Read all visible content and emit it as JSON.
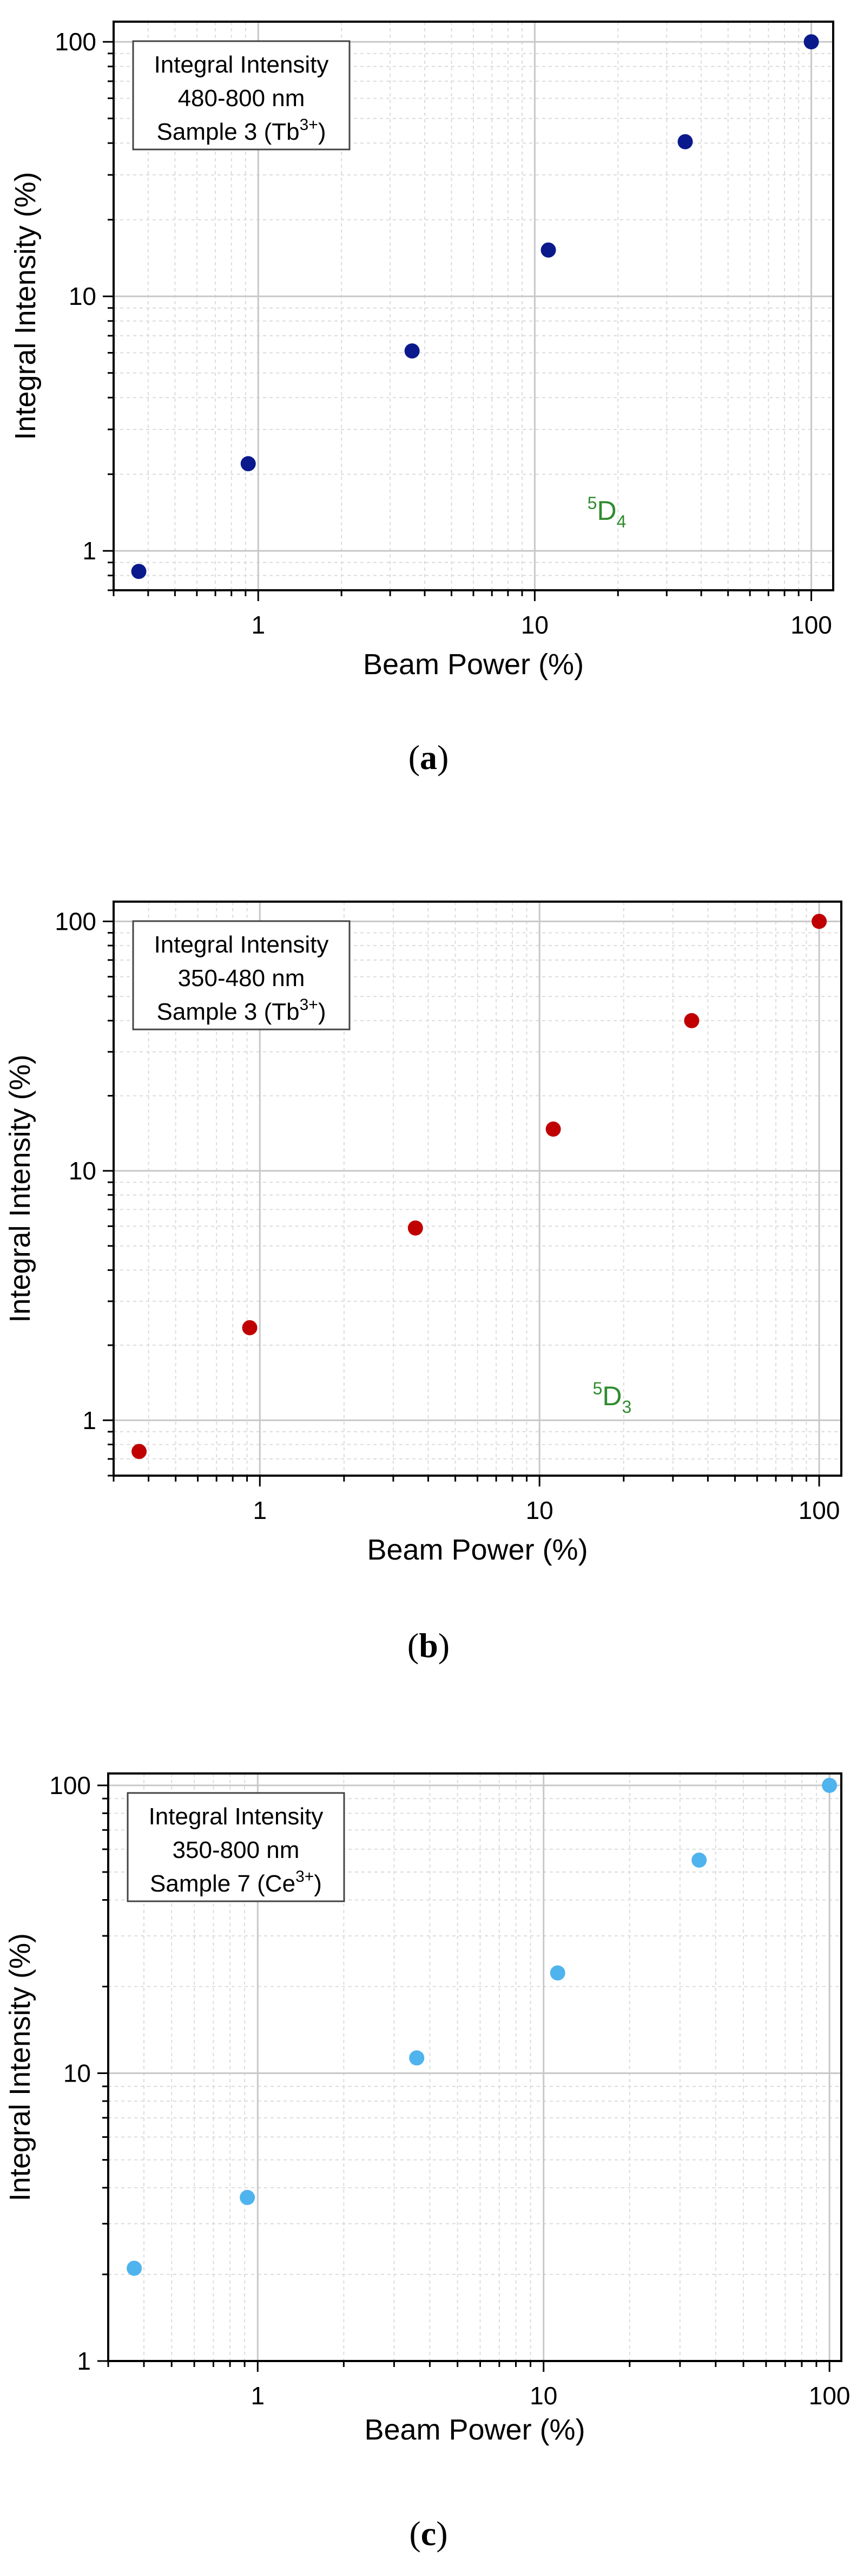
{
  "panels": [
    {
      "caption_letter": "a",
      "legend_lines": [
        "Integral Intensity",
        "480-800 nm"
      ],
      "legend_sample": "Sample 3 (Tb",
      "legend_ion_sup": "3+",
      "legend_suffix": ")",
      "level_sup": "5",
      "level_main": "D",
      "level_sub": "4",
      "level_color": "#2e8b2e",
      "marker_color": "#0a1a8c",
      "chart_data": {
        "type": "scatter",
        "xlabel": "Beam Power (%)",
        "ylabel": "Integral Intensity (%)",
        "xscale": "log",
        "yscale": "log",
        "xlim": [
          0.3,
          120
        ],
        "ylim": [
          0.7,
          120
        ],
        "xticks": [
          1,
          10,
          100
        ],
        "yticks": [
          1,
          10,
          100
        ],
        "grid": true,
        "legend_position": "top-left",
        "x": [
          0.37,
          0.92,
          3.6,
          11.2,
          35,
          100
        ],
        "y": [
          0.83,
          2.2,
          6.1,
          15.2,
          40.5,
          100
        ]
      }
    },
    {
      "caption_letter": "b",
      "legend_lines": [
        "Integral Intensity",
        "350-480 nm"
      ],
      "legend_sample": "Sample 3 (Tb",
      "legend_ion_sup": "3+",
      "legend_suffix": ")",
      "level_sup": "5",
      "level_main": "D",
      "level_sub": "3",
      "level_color": "#2e8b2e",
      "marker_color": "#c00000",
      "chart_data": {
        "type": "scatter",
        "xlabel": "Beam Power (%)",
        "ylabel": "Integral Intensity (%)",
        "xscale": "log",
        "yscale": "log",
        "xlim": [
          0.3,
          120
        ],
        "ylim": [
          0.6,
          120
        ],
        "xticks": [
          1,
          10,
          100
        ],
        "yticks": [
          1,
          10,
          100
        ],
        "grid": true,
        "legend_position": "top-left",
        "x": [
          0.37,
          0.92,
          3.6,
          11.2,
          35,
          100
        ],
        "y": [
          0.75,
          2.35,
          5.9,
          14.7,
          40,
          100
        ]
      }
    },
    {
      "caption_letter": "c",
      "legend_lines": [
        "Integral Intensity",
        "350-800 nm"
      ],
      "legend_sample": "Sample 7 (Ce",
      "legend_ion_sup": "3+",
      "legend_suffix": ")",
      "level_sup": "",
      "level_main": "",
      "level_sub": "",
      "level_color": "#2e8b2e",
      "marker_color": "#4fb3ee",
      "chart_data": {
        "type": "scatter",
        "xlabel": "Beam Power (%)",
        "ylabel": "Integral Intensity (%)",
        "xscale": "log",
        "yscale": "log",
        "xlim": [
          0.3,
          110
        ],
        "ylim": [
          1,
          110
        ],
        "xticks": [
          1,
          10,
          100
        ],
        "yticks": [
          1,
          10,
          100
        ],
        "grid": true,
        "legend_position": "top-left",
        "x": [
          0.37,
          0.92,
          3.6,
          11.2,
          35,
          100
        ],
        "y": [
          2.1,
          3.7,
          11.3,
          22.3,
          55,
          100
        ]
      }
    }
  ]
}
